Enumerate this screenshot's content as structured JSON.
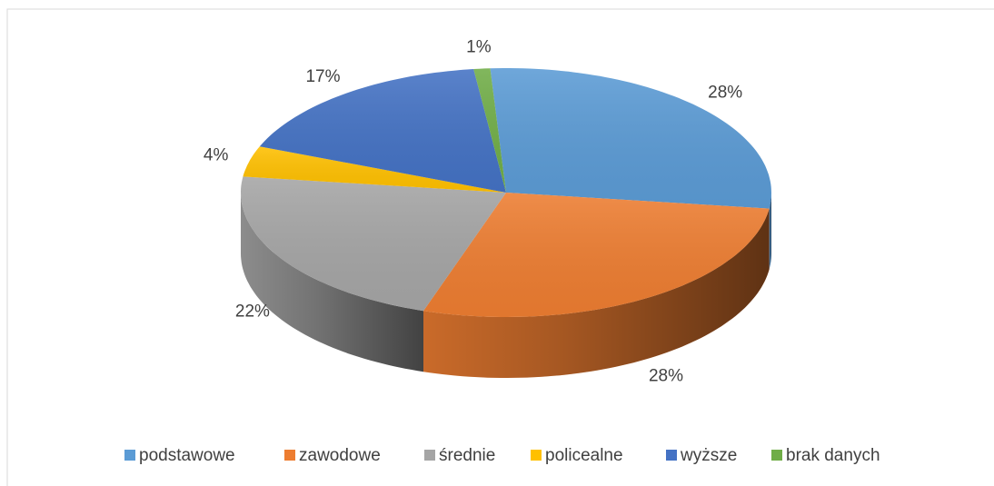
{
  "chart_data": {
    "type": "pie3d",
    "categories": [
      "podstawowe",
      "zawodowe",
      "średnie",
      "policealne",
      "wyższe",
      "brak danych"
    ],
    "values": [
      28,
      28,
      22,
      4,
      17,
      1
    ],
    "value_labels": [
      "28%",
      "28%",
      "22%",
      "4%",
      "17%",
      "1%"
    ],
    "colors": [
      "#5b9bd5",
      "#ed7d31",
      "#a5a5a5",
      "#ffc000",
      "#4472c4",
      "#70ad47"
    ],
    "legend": "bottom"
  }
}
